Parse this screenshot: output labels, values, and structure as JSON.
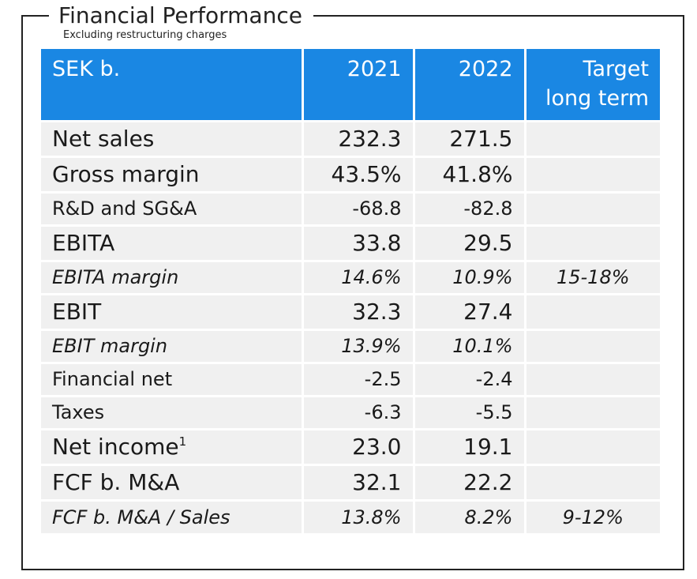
{
  "title": "Financial Performance",
  "subtitle": "Excluding restructuring charges",
  "colors": {
    "header_bg": "#1a87e3",
    "header_text": "#ffffff",
    "row_bg": "#f0f0f0",
    "frame": "#222222"
  },
  "table": {
    "headers": {
      "unit": "SEK b.",
      "y2021": "2021",
      "y2022": "2022",
      "target_line1": "Target",
      "target_line2": "long term"
    },
    "rows": [
      {
        "label": "Net sales",
        "sup": "",
        "v2021": "232.3",
        "v2022": "271.5",
        "target": ""
      },
      {
        "label": "Gross margin",
        "sup": "",
        "v2021": "43.5%",
        "v2022": "41.8%",
        "target": ""
      },
      {
        "label": "R&D and SG&A",
        "sup": "",
        "v2021": "-68.8",
        "v2022": "-82.8",
        "target": ""
      },
      {
        "label": "EBITA",
        "sup": "",
        "v2021": "33.8",
        "v2022": "29.5",
        "target": ""
      },
      {
        "label": "EBITA margin",
        "sup": "",
        "v2021": "14.6%",
        "v2022": "10.9%",
        "target": "15-18%"
      },
      {
        "label": "EBIT",
        "sup": "",
        "v2021": "32.3",
        "v2022": "27.4",
        "target": ""
      },
      {
        "label": "EBIT margin",
        "sup": "",
        "v2021": "13.9%",
        "v2022": "10.1%",
        "target": ""
      },
      {
        "label": "Financial net",
        "sup": "",
        "v2021": "-2.5",
        "v2022": "-2.4",
        "target": ""
      },
      {
        "label": "Taxes",
        "sup": "",
        "v2021": "-6.3",
        "v2022": "-5.5",
        "target": ""
      },
      {
        "label": "Net income",
        "sup": "1",
        "v2021": "23.0",
        "v2022": "19.1",
        "target": ""
      },
      {
        "label": "FCF b. M&A",
        "sup": "",
        "v2021": "32.1",
        "v2022": "22.2",
        "target": ""
      },
      {
        "label": "FCF b. M&A / Sales",
        "sup": "",
        "v2021": "13.8%",
        "v2022": "8.2%",
        "target": "9-12%"
      }
    ]
  }
}
